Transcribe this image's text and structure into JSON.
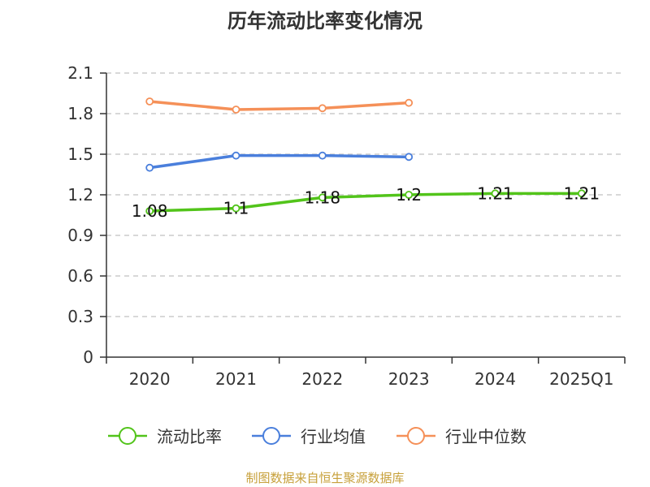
{
  "chart_data": {
    "type": "line",
    "title": "历年流动比率变化情况",
    "categories": [
      "2020",
      "2021",
      "2022",
      "2023",
      "2024",
      "2025Q1"
    ],
    "ylim": [
      0,
      2.1
    ],
    "yticks": [
      "0",
      "0.3",
      "0.6",
      "0.9",
      "1.2",
      "1.5",
      "1.8",
      "2.1"
    ],
    "grid": true,
    "legend_position": "bottom",
    "series": [
      {
        "name": "流动比率",
        "color": "#52c41a",
        "values": [
          1.08,
          1.1,
          1.18,
          1.2,
          1.21,
          1.21
        ],
        "labels": [
          "1.08",
          "1.1",
          "1.18",
          "1.2",
          "1.21",
          "1.21"
        ]
      },
      {
        "name": "行业均值",
        "color": "#4a7fdc",
        "values": [
          1.4,
          1.49,
          1.49,
          1.48,
          null,
          null
        ]
      },
      {
        "name": "行业中位数",
        "color": "#f59058",
        "values": [
          1.89,
          1.83,
          1.84,
          1.88,
          null,
          null
        ]
      }
    ]
  },
  "source_text": "制图数据来自恒生聚源数据库"
}
